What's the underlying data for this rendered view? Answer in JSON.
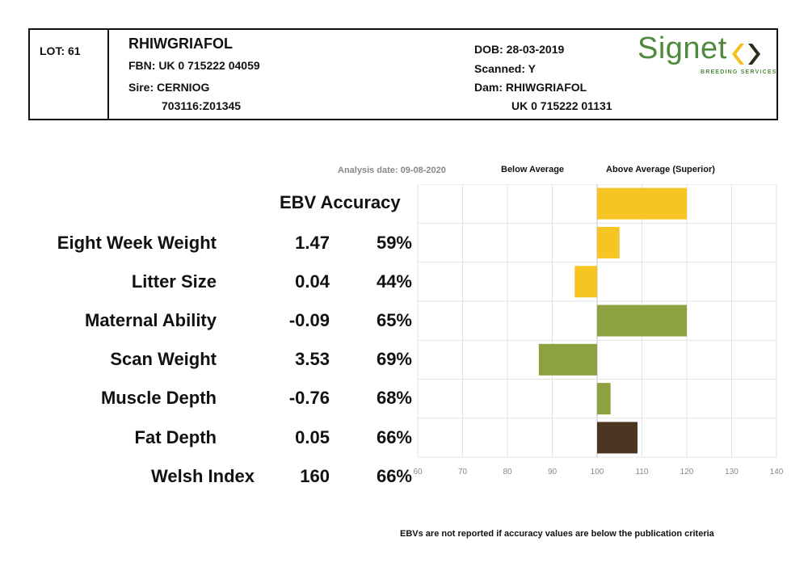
{
  "header": {
    "lot": "LOT: 61",
    "name": "RHIWGRIAFOL",
    "fbn": "FBN: UK 0 715222 04059",
    "sire": "Sire: CERNIOG",
    "sire_id": "703116:Z01345",
    "dob": "DOB: 28-03-2019",
    "scanned": "Scanned: Y",
    "dam": "Dam: RHIWGRIAFOL",
    "dam_id": "UK 0 715222 01131"
  },
  "logo": {
    "word": "Signet",
    "sub": "BREEDING SERVICES",
    "color": "#4d8a3e",
    "mark_color": "#f3c019"
  },
  "analysis_date": "Analysis date: 09-08-2020",
  "legend": {
    "below": "Below Average",
    "above": "Above Average (Superior)"
  },
  "column_header": "EBV Accuracy",
  "footnote": "EBVs are not reported if accuracy values are below the publication criteria",
  "rows": [
    {
      "trait": "Eight Week Weight",
      "ebv": "1.47",
      "accuracy": "59%"
    },
    {
      "trait": "Litter Size",
      "ebv": "0.04",
      "accuracy": "44%"
    },
    {
      "trait": "Maternal Ability",
      "ebv": "-0.09",
      "accuracy": "65%"
    },
    {
      "trait": "Scan Weight",
      "ebv": "3.53",
      "accuracy": "69%"
    },
    {
      "trait": "Muscle Depth",
      "ebv": "-0.76",
      "accuracy": "68%"
    },
    {
      "trait": "Fat Depth",
      "ebv": "0.05",
      "accuracy": "66%"
    },
    {
      "trait": "Welsh Index",
      "ebv": "160",
      "accuracy": "66%"
    }
  ],
  "chart_data": {
    "type": "bar",
    "orientation": "horizontal",
    "baseline": 100,
    "xlim": [
      60,
      140
    ],
    "xticks": [
      60,
      70,
      80,
      90,
      100,
      110,
      120,
      130,
      140
    ],
    "grid": true,
    "categories": [
      "Eight Week Weight",
      "Litter Size",
      "Maternal Ability",
      "Scan Weight",
      "Muscle Depth",
      "Fat Depth",
      "Welsh Index"
    ],
    "values": [
      120,
      105,
      95,
      120,
      87,
      103,
      109
    ],
    "colors": [
      "#f6c524",
      "#f6c524",
      "#f6c524",
      "#8da140",
      "#8da140",
      "#8da140",
      "#4a3521"
    ]
  }
}
